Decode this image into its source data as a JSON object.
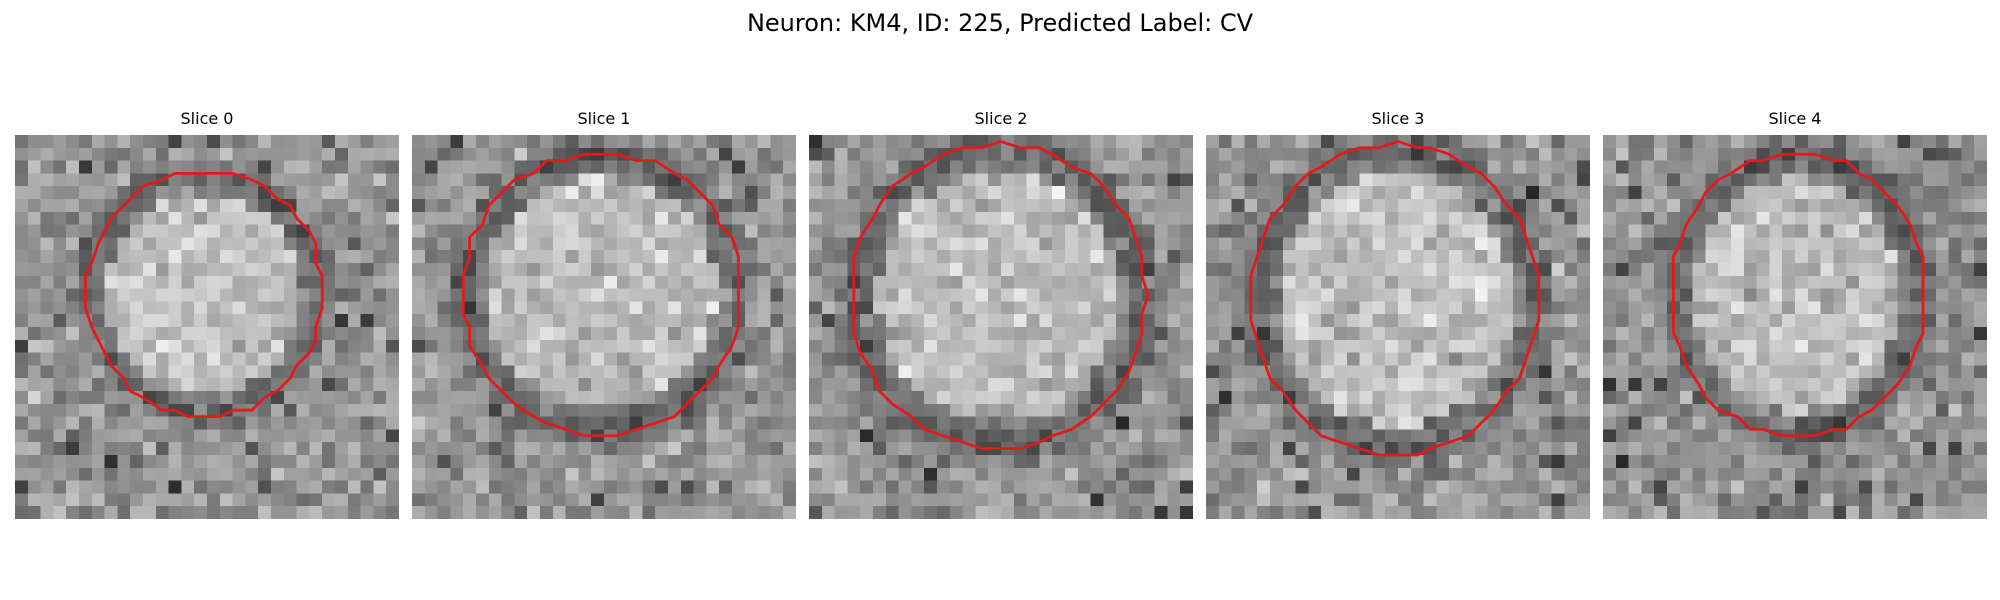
{
  "title": "Neuron: KM4, ID: 225, Predicted Label: CV",
  "contour_color": "#e31a1c",
  "colormap": "gray",
  "grid_size": 30,
  "panels": [
    {
      "label": "Slice 0",
      "contour": {
        "cx": 14.8,
        "cy": 12.4,
        "rx": 9.2,
        "ry": 9.6
      },
      "seed": 11
    },
    {
      "label": "Slice 1",
      "contour": {
        "cx": 14.8,
        "cy": 12.4,
        "rx": 10.9,
        "ry": 11.0
      },
      "seed": 23
    },
    {
      "label": "Slice 2",
      "contour": {
        "cx": 14.8,
        "cy": 12.6,
        "rx": 11.5,
        "ry": 11.9
      },
      "seed": 37
    },
    {
      "label": "Slice 3",
      "contour": {
        "cx": 14.8,
        "cy": 12.8,
        "rx": 11.2,
        "ry": 12.1
      },
      "seed": 41
    },
    {
      "label": "Slice 4",
      "contour": {
        "cx": 15.2,
        "cy": 12.5,
        "rx": 9.9,
        "ry": 11.1
      },
      "seed": 59
    }
  ]
}
